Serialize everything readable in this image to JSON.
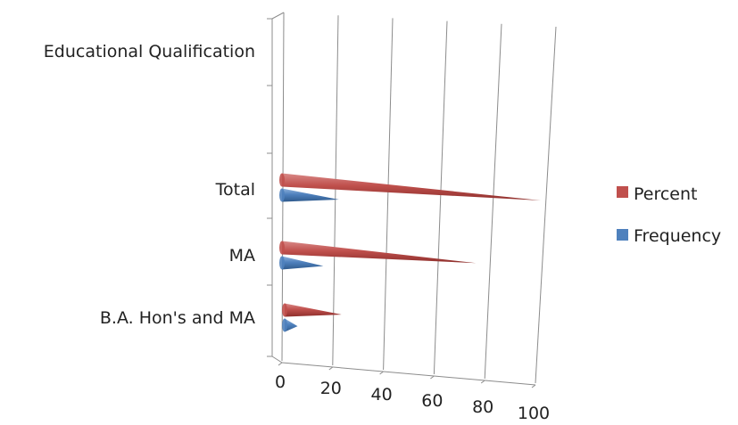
{
  "chart_data": {
    "type": "bar",
    "categories": [
      "Educational Qualification",
      "Total",
      "MA",
      "B.A. Hon's and MA"
    ],
    "series": [
      {
        "name": "Percent",
        "values": [
          null,
          100,
          75,
          22
        ],
        "color": "#C0504D"
      },
      {
        "name": "Frequency",
        "values": [
          null,
          22,
          16,
          5
        ],
        "color": "#4F81BD"
      }
    ],
    "x_ticks": [
      "0",
      "20",
      "40",
      "60",
      "80",
      "100"
    ],
    "xlim": [
      0,
      100
    ],
    "grid": true,
    "legend_position": "right",
    "style": "3d-cone"
  }
}
